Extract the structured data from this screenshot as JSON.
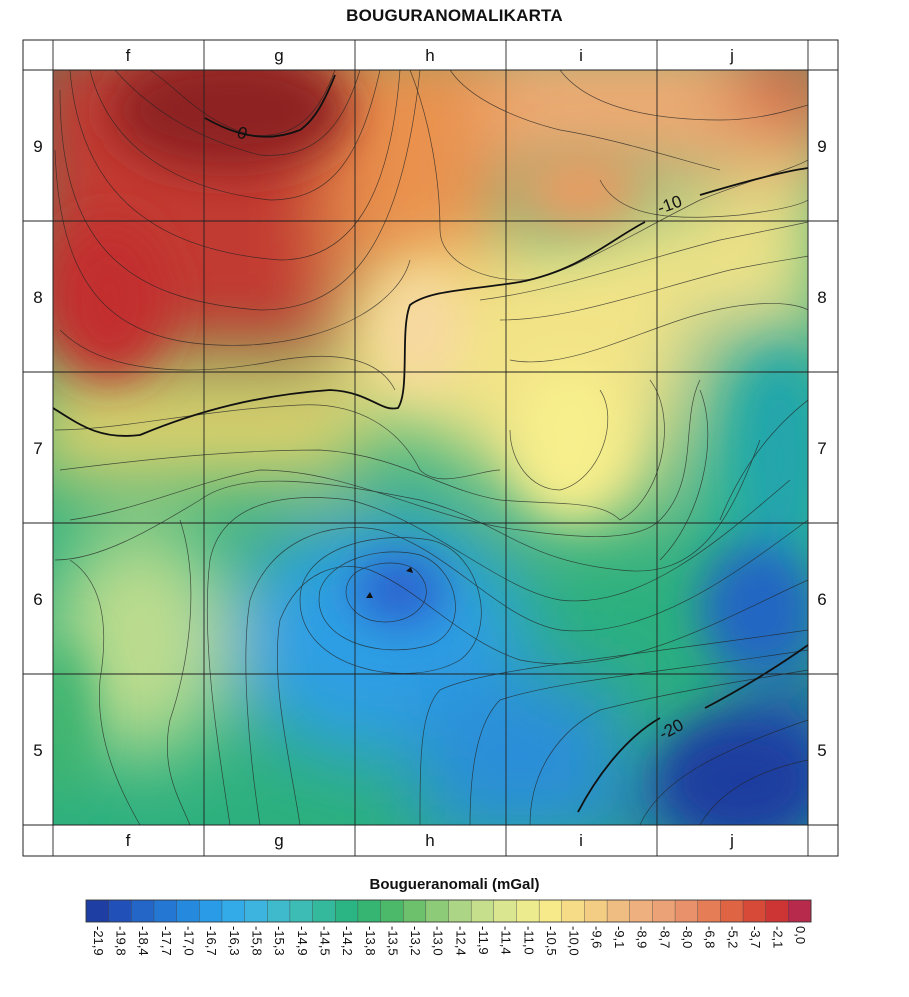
{
  "title": "BOUGURANOMALIKARTA",
  "columns": [
    "f",
    "g",
    "h",
    "i",
    "j"
  ],
  "rows": [
    "9",
    "8",
    "7",
    "6",
    "5"
  ],
  "contour_labels": [
    "0",
    "-10",
    "-20"
  ],
  "legend": {
    "title": "Bougueranomali (mGal)",
    "values": [
      "-21,9",
      "-19,8",
      "-18,4",
      "-17,7",
      "-17,0",
      "-16,7",
      "-16,3",
      "-15,8",
      "-15,3",
      "-14,9",
      "-14,5",
      "-14,2",
      "-13,8",
      "-13,5",
      "-13,2",
      "-13,0",
      "-12,4",
      "-11,9",
      "-11,4",
      "-11,0",
      "-10,5",
      "-10,0",
      "-9,6",
      "-9,1",
      "-8,9",
      "-8,7",
      "-8,0",
      "-6,8",
      "-5,2",
      "-3,7",
      "-2,1",
      "0,0"
    ],
    "colors": [
      "#1f3ea3",
      "#2150b8",
      "#2366c8",
      "#2478d4",
      "#258ade",
      "#2a9be6",
      "#33abe8",
      "#3db4e0",
      "#3fb9cc",
      "#3dbcb5",
      "#34b99c",
      "#2cb584",
      "#35b472",
      "#4cb869",
      "#6dc16d",
      "#8ecb78",
      "#acd685",
      "#c5df8c",
      "#dbe690",
      "#ecec8e",
      "#f6ea8a",
      "#f6dc86",
      "#f3cd84",
      "#efbd82",
      "#eeb07e",
      "#eba276",
      "#e9916a",
      "#e57e56",
      "#de6444",
      "#d74a38",
      "#cd3434",
      "#b82a4c"
    ]
  }
}
